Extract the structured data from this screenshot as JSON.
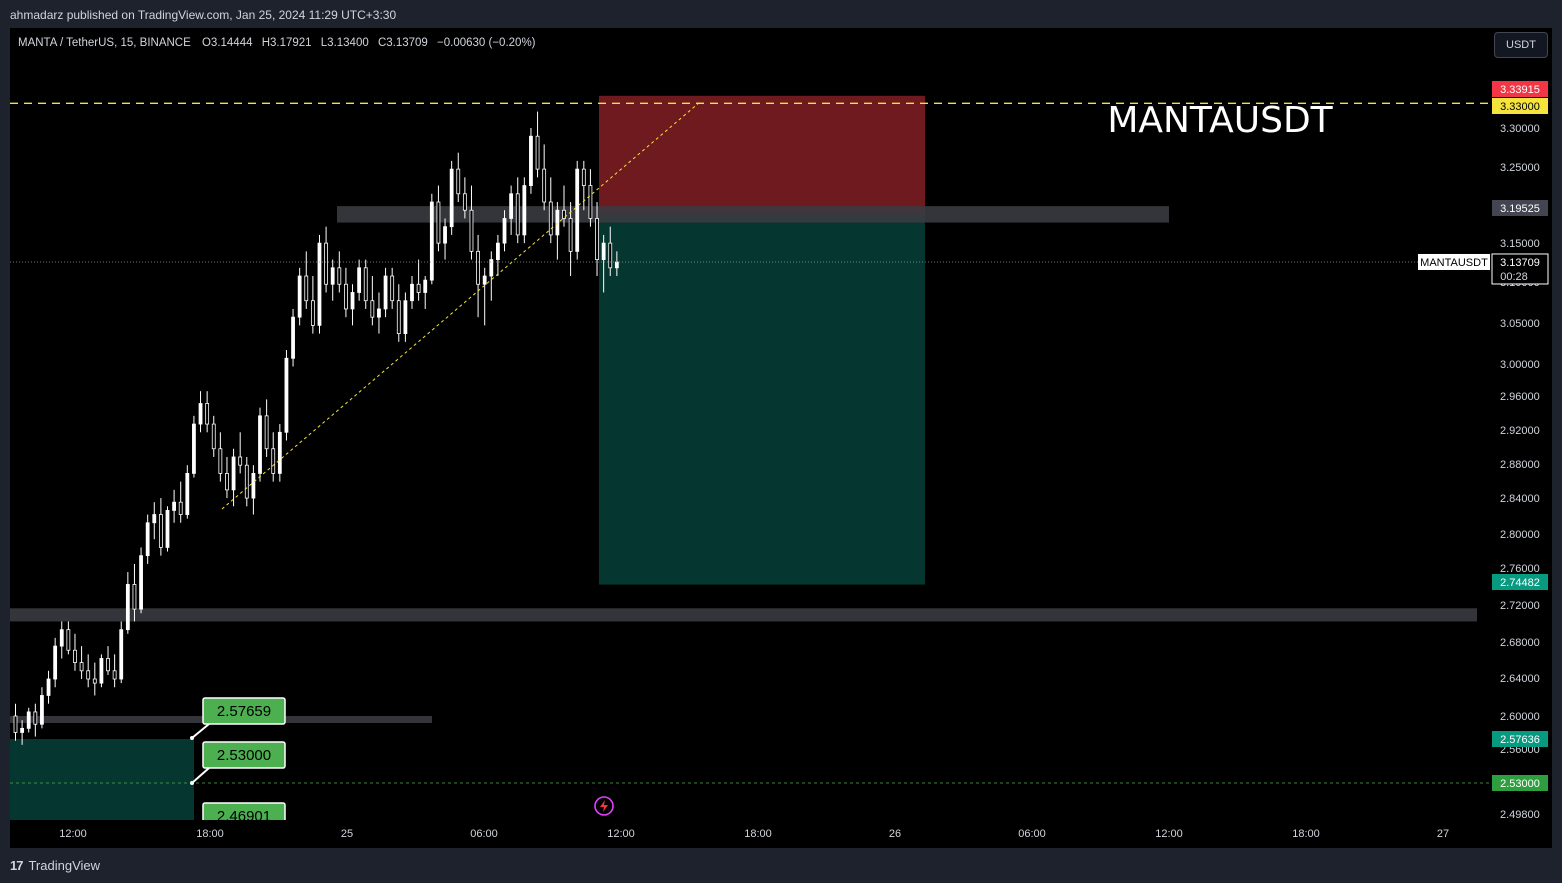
{
  "header": {
    "published_text": "ahmadarz published on TradingView.com, Jan 25, 2024 11:29 UTC+3:30"
  },
  "legend": {
    "symbol": "MANTA / TetherUS, 15, BINANCE",
    "open": "O3.14444",
    "high": "H3.17921",
    "low": "L3.13400",
    "close": "C3.13709",
    "change": "−0.00630 (−0.20%)"
  },
  "currency_button": "USDT",
  "watermark": "MANTAUSDT",
  "footer": {
    "brand": "TradingView",
    "logo_glyph": "17"
  },
  "colors": {
    "background": "#000000",
    "frame": "#1e222d",
    "candle": "#ffffff",
    "stop_zone": "#6e1a1f",
    "target_zone": "#053730",
    "zone_box": "#3a3b40",
    "dashed_yellow": "#f5e43b",
    "label_green": "#4caf50",
    "price_red": "#f23645",
    "price_yellow": "#f5e43b",
    "price_teal": "#089981"
  },
  "chart_data": {
    "type": "candlestick",
    "symbol": "MANTAUSDT",
    "interval": "15",
    "exchange": "BINANCE",
    "x_ticks": [
      "12:00",
      "18:00",
      "25",
      "06:00",
      "12:00",
      "18:00",
      "26",
      "06:00",
      "12:00",
      "18:00",
      "27"
    ],
    "y_ticks": [
      "3.30000",
      "3.25000",
      "3.15000",
      "3.10000",
      "3.05000",
      "3.00000",
      "2.96000",
      "2.92000",
      "2.88000",
      "2.84000",
      "2.80000",
      "2.76000",
      "2.72000",
      "2.68000",
      "2.64000",
      "2.60000",
      "2.56000",
      "2.49800"
    ],
    "y_range": [
      2.48,
      3.36
    ],
    "last_price": {
      "symbol": "MANTAUSDT",
      "price": "3.13709",
      "countdown": "00:28",
      "value": 3.13709
    },
    "price_labels": [
      {
        "text": "3.33915",
        "value": 3.33915,
        "style": "red"
      },
      {
        "text": "3.33000",
        "value": 3.33,
        "style": "yellow"
      },
      {
        "text": "3.19525",
        "value": 3.19525,
        "style": "gray"
      },
      {
        "text": "2.74482",
        "value": 2.74482,
        "style": "teal"
      },
      {
        "text": "2.57636",
        "value": 2.57636,
        "style": "teal"
      },
      {
        "text": "2.53000",
        "value": 2.53,
        "style": "green"
      }
    ],
    "annotations": [
      {
        "text": "2.57659",
        "value": 2.57659
      },
      {
        "text": "2.53000",
        "value": 2.53
      },
      {
        "text": "2.46901",
        "value": 2.46901
      }
    ],
    "horizontal_line": {
      "value": 3.33,
      "style": "dashed",
      "color": "yellow"
    },
    "support_zones": [
      {
        "low": 3.185,
        "high": 3.205,
        "from": "Jan 24 ~22:00",
        "to": "Jan 26 12:00"
      },
      {
        "low": 2.7,
        "high": 2.716,
        "from": "start",
        "to": "end"
      },
      {
        "low": 2.592,
        "high": 2.598,
        "from": "start",
        "to": "Jan 24 ~22:00"
      }
    ],
    "short_position": {
      "entry": 3.19525,
      "stop": 3.33915,
      "target": 2.74482,
      "from": "Jan 25 ~09:45",
      "to": "Jan 26 ~00:00"
    },
    "trendline": {
      "from_value": 2.83,
      "to_value": 3.33,
      "style": "dashed",
      "color": "yellow"
    },
    "candles_ohlc": [
      [
        2.585,
        2.6,
        2.555,
        2.565
      ],
      [
        2.565,
        2.58,
        2.55,
        2.57
      ],
      [
        2.57,
        2.595,
        2.565,
        2.59
      ],
      [
        2.59,
        2.6,
        2.56,
        2.575
      ],
      [
        2.575,
        2.62,
        2.57,
        2.61
      ],
      [
        2.61,
        2.64,
        2.6,
        2.63
      ],
      [
        2.63,
        2.68,
        2.62,
        2.67
      ],
      [
        2.67,
        2.7,
        2.655,
        2.69
      ],
      [
        2.69,
        2.7,
        2.66,
        2.665
      ],
      [
        2.665,
        2.685,
        2.64,
        2.65
      ],
      [
        2.65,
        2.67,
        2.63,
        2.64
      ],
      [
        2.64,
        2.66,
        2.62,
        2.63
      ],
      [
        2.63,
        2.65,
        2.61,
        2.625
      ],
      [
        2.625,
        2.66,
        2.62,
        2.655
      ],
      [
        2.655,
        2.67,
        2.635,
        2.64
      ],
      [
        2.64,
        2.66,
        2.62,
        2.63
      ],
      [
        2.63,
        2.7,
        2.625,
        2.69
      ],
      [
        2.69,
        2.76,
        2.685,
        2.745
      ],
      [
        2.745,
        2.77,
        2.7,
        2.715
      ],
      [
        2.715,
        2.79,
        2.71,
        2.78
      ],
      [
        2.78,
        2.83,
        2.77,
        2.82
      ],
      [
        2.82,
        2.845,
        2.8,
        2.83
      ],
      [
        2.83,
        2.85,
        2.78,
        2.79
      ],
      [
        2.79,
        2.84,
        2.785,
        2.835
      ],
      [
        2.835,
        2.86,
        2.82,
        2.845
      ],
      [
        2.845,
        2.87,
        2.82,
        2.83
      ],
      [
        2.83,
        2.89,
        2.825,
        2.88
      ],
      [
        2.88,
        2.95,
        2.875,
        2.94
      ],
      [
        2.94,
        2.98,
        2.93,
        2.965
      ],
      [
        2.965,
        2.98,
        2.93,
        2.94
      ],
      [
        2.94,
        2.95,
        2.9,
        2.91
      ],
      [
        2.91,
        2.93,
        2.87,
        2.88
      ],
      [
        2.88,
        2.9,
        2.85,
        2.86
      ],
      [
        2.86,
        2.91,
        2.84,
        2.9
      ],
      [
        2.9,
        2.93,
        2.88,
        2.89
      ],
      [
        2.89,
        2.9,
        2.84,
        2.85
      ],
      [
        2.85,
        2.89,
        2.83,
        2.88
      ],
      [
        2.88,
        2.96,
        2.87,
        2.95
      ],
      [
        2.95,
        2.97,
        2.9,
        2.91
      ],
      [
        2.91,
        2.93,
        2.87,
        2.88
      ],
      [
        2.88,
        2.94,
        2.87,
        2.93
      ],
      [
        2.93,
        3.03,
        2.92,
        3.02
      ],
      [
        3.02,
        3.08,
        3.01,
        3.07
      ],
      [
        3.07,
        3.13,
        3.06,
        3.12
      ],
      [
        3.12,
        3.15,
        3.08,
        3.09
      ],
      [
        3.09,
        3.12,
        3.05,
        3.06
      ],
      [
        3.06,
        3.17,
        3.05,
        3.16
      ],
      [
        3.16,
        3.18,
        3.1,
        3.11
      ],
      [
        3.11,
        3.14,
        3.09,
        3.13
      ],
      [
        3.13,
        3.15,
        3.1,
        3.11
      ],
      [
        3.11,
        3.13,
        3.07,
        3.08
      ],
      [
        3.08,
        3.11,
        3.06,
        3.1
      ],
      [
        3.1,
        3.14,
        3.09,
        3.13
      ],
      [
        3.13,
        3.14,
        3.08,
        3.09
      ],
      [
        3.09,
        3.12,
        3.06,
        3.07
      ],
      [
        3.07,
        3.1,
        3.05,
        3.08
      ],
      [
        3.08,
        3.13,
        3.07,
        3.12
      ],
      [
        3.12,
        3.13,
        3.08,
        3.09
      ],
      [
        3.09,
        3.11,
        3.04,
        3.05
      ],
      [
        3.05,
        3.1,
        3.04,
        3.09
      ],
      [
        3.09,
        3.12,
        3.08,
        3.11
      ],
      [
        3.11,
        3.14,
        3.09,
        3.1
      ],
      [
        3.1,
        3.12,
        3.08,
        3.115
      ],
      [
        3.115,
        3.22,
        3.11,
        3.21
      ],
      [
        3.21,
        3.23,
        3.15,
        3.16
      ],
      [
        3.16,
        3.19,
        3.14,
        3.18
      ],
      [
        3.18,
        3.26,
        3.17,
        3.25
      ],
      [
        3.25,
        3.27,
        3.21,
        3.22
      ],
      [
        3.22,
        3.24,
        3.19,
        3.2
      ],
      [
        3.2,
        3.23,
        3.14,
        3.15
      ],
      [
        3.15,
        3.17,
        3.07,
        3.11
      ],
      [
        3.11,
        3.13,
        3.06,
        3.12
      ],
      [
        3.12,
        3.15,
        3.09,
        3.14
      ],
      [
        3.14,
        3.17,
        3.12,
        3.16
      ],
      [
        3.16,
        3.2,
        3.15,
        3.19
      ],
      [
        3.19,
        3.23,
        3.17,
        3.22
      ],
      [
        3.22,
        3.24,
        3.16,
        3.17
      ],
      [
        3.17,
        3.24,
        3.16,
        3.23
      ],
      [
        3.23,
        3.3,
        3.22,
        3.29
      ],
      [
        3.29,
        3.32,
        3.24,
        3.25
      ],
      [
        3.25,
        3.28,
        3.2,
        3.21
      ],
      [
        3.21,
        3.24,
        3.16,
        3.17
      ],
      [
        3.17,
        3.21,
        3.14,
        3.2
      ],
      [
        3.2,
        3.23,
        3.18,
        3.19
      ],
      [
        3.19,
        3.21,
        3.12,
        3.15
      ],
      [
        3.15,
        3.26,
        3.14,
        3.25
      ],
      [
        3.25,
        3.26,
        3.2,
        3.23
      ],
      [
        3.23,
        3.25,
        3.18,
        3.19
      ],
      [
        3.19,
        3.21,
        3.12,
        3.14
      ],
      [
        3.14,
        3.17,
        3.1,
        3.16
      ],
      [
        3.16,
        3.18,
        3.12,
        3.13
      ],
      [
        3.13,
        3.15,
        3.12,
        3.137
      ]
    ]
  }
}
